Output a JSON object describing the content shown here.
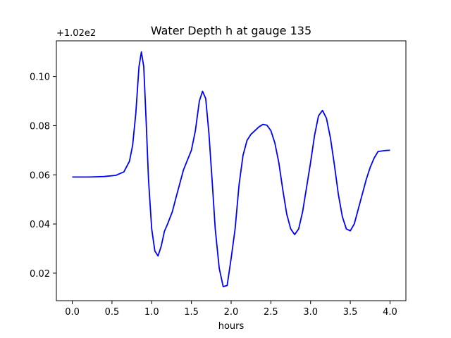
{
  "chart_data": {
    "type": "line",
    "title": "Water Depth h at gauge 135",
    "xlabel": "hours",
    "ylabel": "",
    "offset_label": "+1.02e2",
    "xlim": [
      -0.2,
      4.2
    ],
    "ylim": [
      0.0088,
      0.1145
    ],
    "xticks": [
      0.0,
      0.5,
      1.0,
      1.5,
      2.0,
      2.5,
      3.0,
      3.5,
      4.0
    ],
    "xtick_labels": [
      "0.0",
      "0.5",
      "1.0",
      "1.5",
      "2.0",
      "2.5",
      "3.0",
      "3.5",
      "4.0"
    ],
    "yticks": [
      0.02,
      0.04,
      0.06,
      0.08,
      0.1
    ],
    "ytick_labels": [
      "0.02",
      "0.04",
      "0.06",
      "0.08",
      "0.10"
    ],
    "grid": false,
    "series": [
      {
        "color": "#0000ff",
        "x": [
          0.0,
          0.2,
          0.4,
          0.55,
          0.65,
          0.72,
          0.76,
          0.8,
          0.84,
          0.87,
          0.9,
          0.93,
          0.96,
          1.0,
          1.04,
          1.08,
          1.12,
          1.16,
          1.2,
          1.26,
          1.3,
          1.35,
          1.4,
          1.45,
          1.5,
          1.55,
          1.6,
          1.64,
          1.68,
          1.72,
          1.76,
          1.8,
          1.85,
          1.9,
          1.95,
          2.0,
          2.05,
          2.1,
          2.15,
          2.2,
          2.25,
          2.3,
          2.35,
          2.4,
          2.45,
          2.5,
          2.55,
          2.6,
          2.65,
          2.7,
          2.75,
          2.8,
          2.85,
          2.9,
          2.95,
          3.0,
          3.05,
          3.1,
          3.15,
          3.2,
          3.25,
          3.3,
          3.35,
          3.4,
          3.45,
          3.5,
          3.55,
          3.6,
          3.65,
          3.7,
          3.75,
          3.8,
          3.85,
          3.9,
          3.95,
          4.0
        ],
        "y": [
          0.0591,
          0.0591,
          0.0593,
          0.0598,
          0.0612,
          0.0655,
          0.072,
          0.085,
          0.104,
          0.11,
          0.104,
          0.082,
          0.058,
          0.038,
          0.029,
          0.027,
          0.031,
          0.037,
          0.04,
          0.045,
          0.05,
          0.056,
          0.062,
          0.066,
          0.07,
          0.078,
          0.09,
          0.094,
          0.091,
          0.077,
          0.058,
          0.038,
          0.022,
          0.0145,
          0.015,
          0.026,
          0.038,
          0.056,
          0.068,
          0.074,
          0.0765,
          0.078,
          0.0795,
          0.0805,
          0.0802,
          0.078,
          0.073,
          0.065,
          0.054,
          0.044,
          0.038,
          0.0357,
          0.038,
          0.045,
          0.055,
          0.065,
          0.076,
          0.084,
          0.0862,
          0.083,
          0.075,
          0.064,
          0.052,
          0.043,
          0.038,
          0.0372,
          0.04,
          0.046,
          0.052,
          0.058,
          0.063,
          0.0668,
          0.0695,
          0.0697,
          0.0699,
          0.07
        ]
      }
    ]
  }
}
